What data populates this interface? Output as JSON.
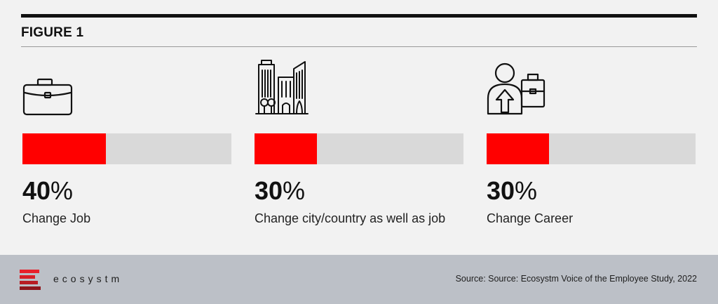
{
  "figure_title": "FIGURE 1",
  "colors": {
    "accent": "#ff0000",
    "track": "#d9d9d9",
    "footer_bg": "#bcc0c7",
    "rule": "#111111"
  },
  "chart_data": {
    "type": "bar",
    "title": "FIGURE 1",
    "categories": [
      "Change Job",
      "Change city/country as well as job",
      "Change Career"
    ],
    "values": [
      40,
      30,
      30
    ],
    "ylim": [
      0,
      100
    ],
    "unit": "%",
    "value_labels": [
      "40",
      "30",
      "30"
    ],
    "icons": [
      "briefcase-icon",
      "city-buildings-icon",
      "person-career-icon"
    ],
    "legend": "none",
    "grid": false
  },
  "footer": {
    "logo_text": "ecosystm",
    "source": "Source: Source: Ecosystm Voice of the Employee Study, 2022"
  }
}
